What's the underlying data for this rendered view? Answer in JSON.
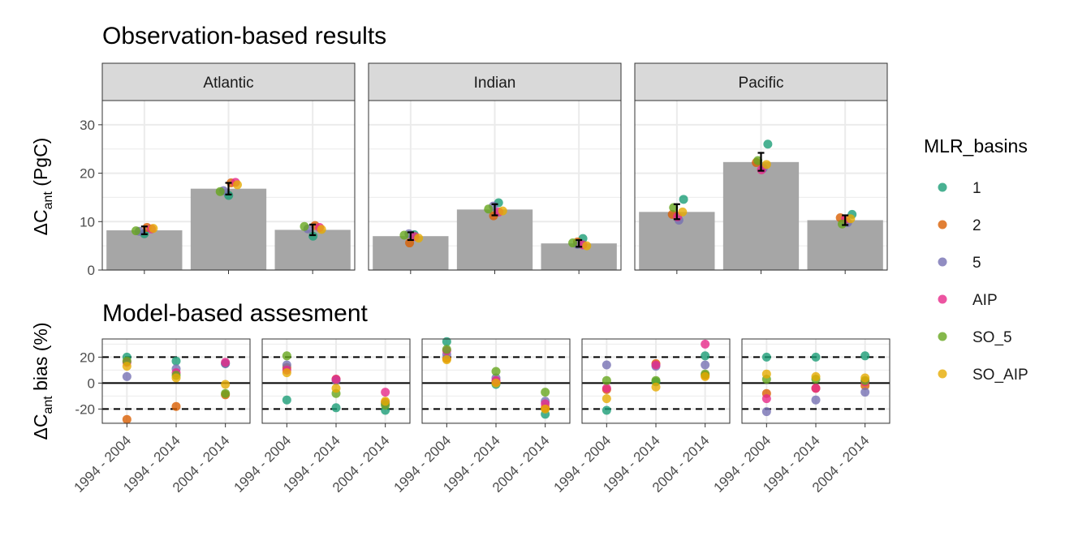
{
  "colors": {
    "bar": "#a6a6a6",
    "strip_fill": "#d9d9d9",
    "grid": "#ebebeb",
    "series": {
      "1": "#1b9e77",
      "2": "#d95f02",
      "5": "#7570b3",
      "AIP": "#e7298a",
      "SO_5": "#66a61e",
      "SO_AIP": "#e6ab02"
    }
  },
  "chart_data": [
    {
      "type": "bar",
      "title": "Observation-based results",
      "ylabel_main": "ΔC",
      "ylabel_sub": "ant",
      "ylabel_tail": " (PgC)",
      "ylim": [
        0,
        35
      ],
      "yticks": [
        0,
        10,
        20,
        30
      ],
      "grid": true,
      "panels": [
        {
          "name": "Atlantic",
          "bars": [
            8.2,
            16.8,
            8.3
          ],
          "error": [
            [
              7.4,
              9.0
            ],
            [
              15.6,
              18.0
            ],
            [
              7.2,
              9.4
            ]
          ],
          "series": [
            {
              "name": "1",
              "values": [
                7.5,
                15.4,
                7.0
              ]
            },
            {
              "name": "2",
              "values": [
                8.8,
                18.0,
                9.2
              ]
            },
            {
              "name": "5",
              "values": [
                8.0,
                16.4,
                8.5
              ]
            },
            {
              "name": "AIP",
              "values": [
                8.5,
                18.1,
                8.8
              ]
            },
            {
              "name": "SO_5",
              "values": [
                8.1,
                16.2,
                9.0
              ]
            },
            {
              "name": "SO_AIP",
              "values": [
                8.6,
                17.6,
                8.4
              ]
            }
          ]
        },
        {
          "name": "Indian",
          "bars": [
            7.0,
            12.5,
            5.5
          ],
          "error": [
            [
              6.2,
              7.8
            ],
            [
              11.3,
              13.6
            ],
            [
              4.8,
              6.2
            ]
          ],
          "series": [
            {
              "name": "1",
              "values": [
                7.3,
                13.9,
                6.5
              ]
            },
            {
              "name": "2",
              "values": [
                5.6,
                11.2,
                5.8
              ]
            },
            {
              "name": "5",
              "values": [
                7.5,
                13.2,
                5.3
              ]
            },
            {
              "name": "AIP",
              "values": [
                6.9,
                12.0,
                5.2
              ]
            },
            {
              "name": "SO_5",
              "values": [
                7.2,
                12.6,
                5.6
              ]
            },
            {
              "name": "SO_AIP",
              "values": [
                6.6,
                12.2,
                5.0
              ]
            }
          ]
        },
        {
          "name": "Pacific",
          "bars": [
            12.0,
            22.3,
            10.3
          ],
          "error": [
            [
              10.5,
              13.6
            ],
            [
              20.5,
              24.2
            ],
            [
              9.3,
              11.3
            ]
          ],
          "series": [
            {
              "name": "1",
              "values": [
                14.6,
                26.0,
                11.5
              ]
            },
            {
              "name": "2",
              "values": [
                11.5,
                22.2,
                10.8
              ]
            },
            {
              "name": "5",
              "values": [
                10.3,
                21.0,
                9.8
              ]
            },
            {
              "name": "AIP",
              "values": [
                11.0,
                20.7,
                10.5
              ]
            },
            {
              "name": "SO_5",
              "values": [
                12.9,
                22.6,
                9.5
              ]
            },
            {
              "name": "SO_AIP",
              "values": [
                12.0,
                21.8,
                10.6
              ]
            }
          ]
        }
      ]
    },
    {
      "type": "scatter",
      "title": "Model-based assesment",
      "ylabel_main": "ΔC",
      "ylabel_sub": "ant",
      "ylabel_tail": " bias (%)",
      "ylim": [
        -31,
        34
      ],
      "yticks": [
        -20,
        0,
        20
      ],
      "reference_lines": {
        "solid": 0,
        "dashed": [
          -20,
          20
        ]
      },
      "categories": [
        "1994 - 2004",
        "1994 - 2014",
        "2004 - 2014"
      ],
      "grid": true,
      "panels": [
        {
          "series": [
            {
              "name": "1",
              "values": [
                20,
                17,
                15
              ]
            },
            {
              "name": "2",
              "values": [
                -28,
                -18,
                -9
              ]
            },
            {
              "name": "5",
              "values": [
                5,
                11,
                15
              ]
            },
            {
              "name": "AIP",
              "values": [
                16,
                8,
                16
              ]
            },
            {
              "name": "SO_5",
              "values": [
                17,
                6,
                -8
              ]
            },
            {
              "name": "SO_AIP",
              "values": [
                13,
                4,
                -1
              ]
            }
          ]
        },
        {
          "series": [
            {
              "name": "1",
              "values": [
                -13,
                -19,
                -21
              ]
            },
            {
              "name": "2",
              "values": [
                12,
                3,
                -15
              ]
            },
            {
              "name": "5",
              "values": [
                14,
                2,
                -16
              ]
            },
            {
              "name": "AIP",
              "values": [
                10,
                3,
                -7
              ]
            },
            {
              "name": "SO_5",
              "values": [
                21,
                -8,
                -17
              ]
            },
            {
              "name": "SO_AIP",
              "values": [
                8,
                -4,
                -14
              ]
            }
          ]
        },
        {
          "series": [
            {
              "name": "1",
              "values": [
                32,
                -1,
                -24
              ]
            },
            {
              "name": "2",
              "values": [
                19,
                1,
                -19
              ]
            },
            {
              "name": "5",
              "values": [
                22,
                4,
                -14
              ]
            },
            {
              "name": "AIP",
              "values": [
                25,
                2,
                -16
              ]
            },
            {
              "name": "SO_5",
              "values": [
                26,
                9,
                -7
              ]
            },
            {
              "name": "SO_AIP",
              "values": [
                18,
                0,
                -20
              ]
            }
          ]
        },
        {
          "series": [
            {
              "name": "1",
              "values": [
                -21,
                1,
                21
              ]
            },
            {
              "name": "2",
              "values": [
                -5,
                15,
                6
              ]
            },
            {
              "name": "5",
              "values": [
                14,
                13,
                14
              ]
            },
            {
              "name": "AIP",
              "values": [
                -4,
                14,
                30
              ]
            },
            {
              "name": "SO_5",
              "values": [
                2,
                2,
                7
              ]
            },
            {
              "name": "SO_AIP",
              "values": [
                -12,
                -3,
                5
              ]
            }
          ]
        },
        {
          "series": [
            {
              "name": "1",
              "values": [
                20,
                20,
                21
              ]
            },
            {
              "name": "2",
              "values": [
                -8,
                -4,
                -2
              ]
            },
            {
              "name": "5",
              "values": [
                -22,
                -13,
                -7
              ]
            },
            {
              "name": "AIP",
              "values": [
                -12,
                -4,
                1
              ]
            },
            {
              "name": "SO_5",
              "values": [
                3,
                3,
                2
              ]
            },
            {
              "name": "SO_AIP",
              "values": [
                7,
                5,
                4
              ]
            }
          ]
        }
      ]
    }
  ],
  "legend": {
    "title": "MLR_basins",
    "items": [
      "1",
      "2",
      "5",
      "AIP",
      "SO_5",
      "SO_AIP"
    ]
  }
}
